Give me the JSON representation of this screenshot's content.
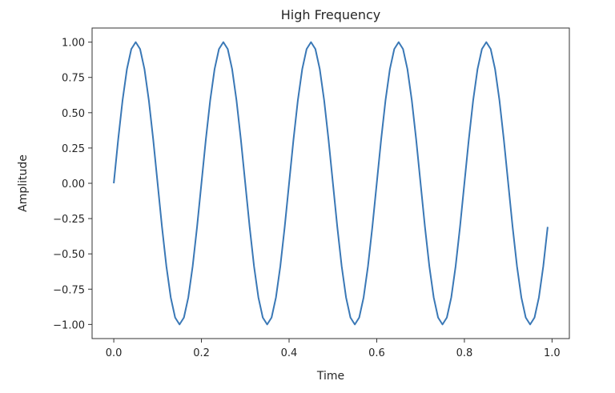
{
  "chart_data": {
    "type": "line",
    "title": "High Frequency",
    "xlabel": "Time",
    "ylabel": "Amplitude",
    "xlim": [
      -0.0495,
      1.0395
    ],
    "ylim": [
      -1.1,
      1.1
    ],
    "xticks": [
      "0.0",
      "0.2",
      "0.4",
      "0.6",
      "0.8",
      "1.0"
    ],
    "xtick_values": [
      0,
      0.2,
      0.4,
      0.6,
      0.8,
      1.0
    ],
    "yticks": [
      "−1.00",
      "−0.75",
      "−0.50",
      "−0.25",
      "0.00",
      "0.25",
      "0.50",
      "0.75",
      "1.00"
    ],
    "ytick_values": [
      -1,
      -0.75,
      -0.5,
      -0.25,
      0,
      0.25,
      0.5,
      0.75,
      1
    ],
    "grid": false,
    "series": [
      {
        "color": "#3a78b6",
        "x_start": 0,
        "x_step": 0.01,
        "count": 100,
        "function": "sin(2π·5·t)"
      }
    ]
  }
}
